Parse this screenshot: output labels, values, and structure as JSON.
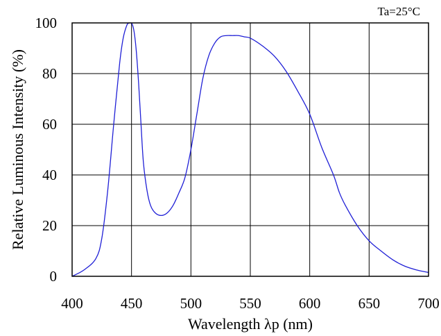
{
  "chart_data": {
    "type": "line",
    "title": "",
    "annotation": "Ta=25°C",
    "xlabel": "Wavelength λp (nm)",
    "ylabel": "Relative Luminous Intensity  (%)",
    "xlim": [
      400,
      700
    ],
    "ylim": [
      0,
      100
    ],
    "xticks": [
      "400",
      "450",
      "500",
      "550",
      "600",
      "650",
      "700"
    ],
    "yticks": [
      "0",
      "20",
      "40",
      "60",
      "80",
      "100"
    ],
    "grid": true,
    "series": [
      {
        "color": "#1f1fd6",
        "x": [
          400,
          410,
          420,
          425,
          430,
          435,
          440,
          443,
          446,
          448,
          450,
          452,
          454,
          456,
          458,
          460,
          463,
          466,
          470,
          475,
          480,
          485,
          490,
          495,
          500,
          505,
          510,
          515,
          520,
          525,
          530,
          535,
          540,
          545,
          550,
          560,
          570,
          580,
          590,
          600,
          610,
          620,
          625,
          630,
          640,
          650,
          660,
          670,
          680,
          690,
          700
        ],
        "y": [
          0,
          2.5,
          7,
          15,
          34,
          60,
          84,
          94,
          99,
          100,
          100,
          97,
          89,
          76,
          60,
          45,
          34,
          28,
          25,
          24,
          25,
          28,
          33,
          39,
          50,
          64,
          78,
          87,
          92,
          94.5,
          95,
          95,
          95,
          94.5,
          94,
          91,
          87,
          81,
          73,
          64,
          51,
          40,
          33,
          28,
          20,
          14,
          10,
          6.5,
          4,
          2.5,
          1.5
        ]
      }
    ]
  }
}
